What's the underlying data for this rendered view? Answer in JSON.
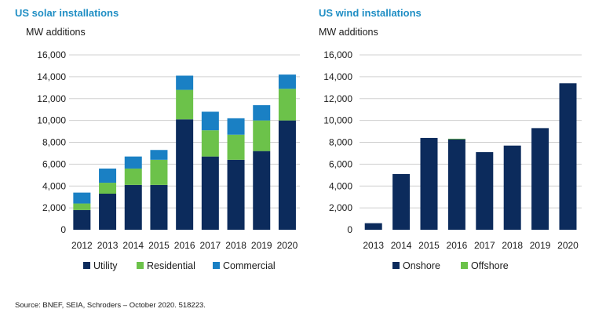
{
  "colors": {
    "title": "#1f8ec4",
    "utility": "#0c2b5c",
    "residential": "#6cc24a",
    "commercial": "#1a80c4",
    "onshore": "#0c2b5c",
    "offshore": "#6cc24a",
    "grid": "#d0d0d0"
  },
  "chart_data": [
    {
      "type": "bar",
      "stacked": true,
      "title": "US solar installations",
      "ylabel": "MW additions",
      "ylim": [
        0,
        16000
      ],
      "yticks": [
        0,
        2000,
        4000,
        6000,
        8000,
        10000,
        12000,
        14000,
        16000
      ],
      "ytick_labels": [
        "0",
        "2,000",
        "4,000",
        "6,000",
        "8,000",
        "10,000",
        "12,000",
        "14,000",
        "16,000"
      ],
      "categories": [
        "2012",
        "2013",
        "2014",
        "2015",
        "2016",
        "2017",
        "2018",
        "2019",
        "2020"
      ],
      "series": [
        {
          "name": "Utility",
          "values": [
            1800,
            3300,
            4100,
            4100,
            10100,
            6700,
            6400,
            7200,
            10000
          ]
        },
        {
          "name": "Residential",
          "values": [
            600,
            1000,
            1500,
            2300,
            2700,
            2400,
            2300,
            2800,
            2900
          ]
        },
        {
          "name": "Commercial",
          "values": [
            1000,
            1300,
            1100,
            900,
            1300,
            1700,
            1500,
            1400,
            1300
          ]
        }
      ],
      "grid": "horizontal",
      "legend": "bottom"
    },
    {
      "type": "bar",
      "stacked": true,
      "title": "US wind installations",
      "ylabel": "MW additions",
      "ylim": [
        0,
        16000
      ],
      "yticks": [
        0,
        2000,
        4000,
        6000,
        8000,
        10000,
        12000,
        14000,
        16000
      ],
      "ytick_labels": [
        "0",
        "2,000",
        "4,000",
        "6,000",
        "8,000",
        "10,000",
        "12,000",
        "14,000",
        "16,000"
      ],
      "categories": [
        "2013",
        "2014",
        "2015",
        "2016",
        "2017",
        "2018",
        "2019",
        "2020"
      ],
      "series": [
        {
          "name": "Onshore",
          "values": [
            600,
            5100,
            8400,
            8300,
            7100,
            7700,
            9300,
            13400
          ]
        },
        {
          "name": "Offshore",
          "values": [
            0,
            0,
            0,
            30,
            0,
            0,
            0,
            0
          ]
        }
      ],
      "grid": "horizontal",
      "legend": "bottom"
    }
  ],
  "source": "Source: BNEF, SEIA, Schroders – October 2020. 518223."
}
